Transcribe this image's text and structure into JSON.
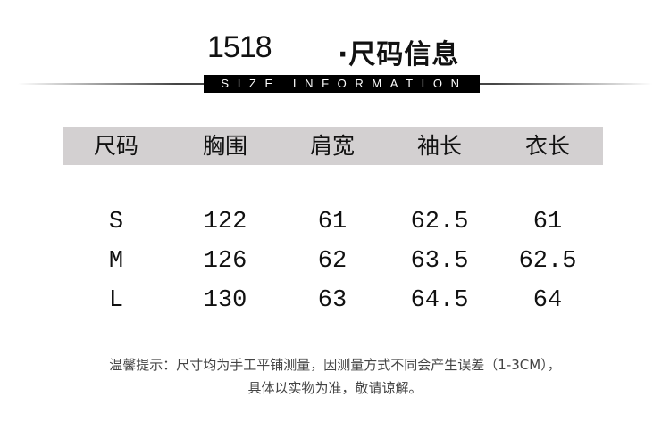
{
  "header": {
    "code": "1518",
    "title": "·尺码信息",
    "subtitle": "SIZE INFORMATION"
  },
  "table": {
    "columns": [
      "尺码",
      "胸围",
      "肩宽",
      "袖长",
      "衣长"
    ],
    "rows": [
      [
        "S",
        "122",
        "61",
        "62.5",
        "61"
      ],
      [
        "M",
        "126",
        "62",
        "63.5",
        "62.5"
      ],
      [
        "L",
        "130",
        "63",
        "64.5",
        "64"
      ]
    ]
  },
  "note": {
    "line1": "温馨提示：尺寸均为手工平铺测量，因测量方式不同会产生误差（1-3CM），",
    "line2": "具体以实物为准，敬请谅解。"
  }
}
